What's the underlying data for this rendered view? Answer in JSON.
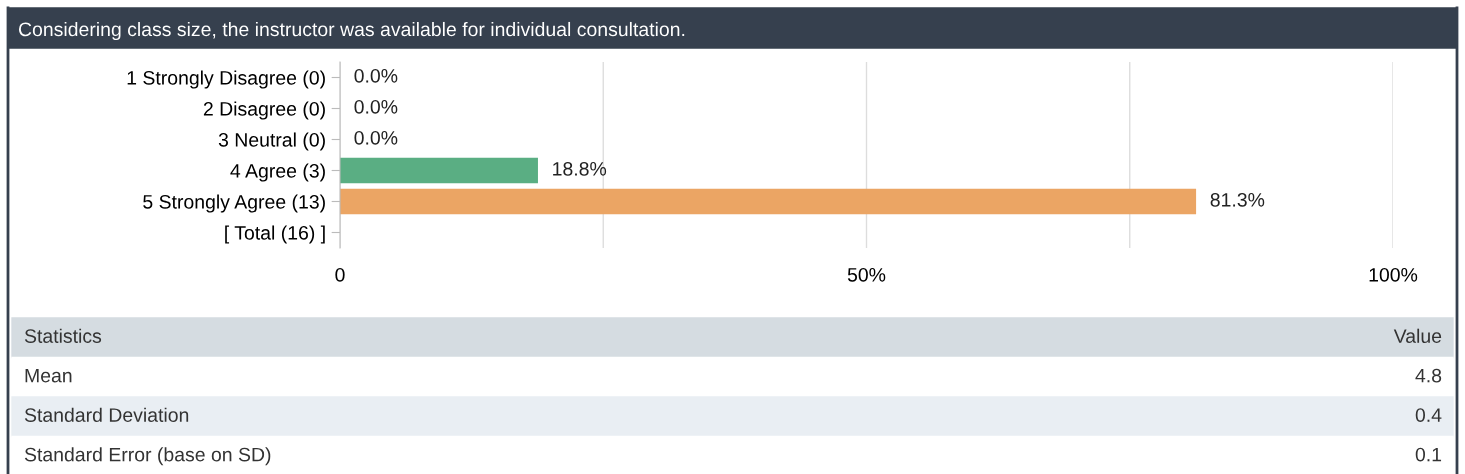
{
  "chart_data": {
    "type": "bar",
    "orientation": "horizontal",
    "title": "Considering class size, the instructor was available for individual consultation.",
    "categories": [
      "1 Strongly Disagree (0)",
      "2 Disagree (0)",
      "3 Neutral (0)",
      "4 Agree (3)",
      "5 Strongly Agree (13)",
      "[ Total (16) ]"
    ],
    "values": [
      0,
      0,
      0,
      18.8,
      81.3,
      null
    ],
    "colors": [
      "#5aae83",
      "#5aae83",
      "#5aae83",
      "#5aae83",
      "#eba564",
      "#5aae83"
    ],
    "value_labels": [
      "0.0%",
      "0.0%",
      "0.0%",
      "18.8%",
      "81.3%",
      null
    ],
    "xlim": [
      0,
      100
    ],
    "xticks": [
      0,
      {
        "value": 25,
        "label": null
      },
      {
        "value": 50,
        "label": "50%"
      },
      {
        "value": 75,
        "label": null
      },
      {
        "value": 100,
        "label": "100%"
      }
    ],
    "grid": "x",
    "legend": false,
    "annotations": [
      "Statistics",
      "Value",
      "Mean",
      "4.8",
      "Standard Deviation",
      "0.4",
      "Standard Error (base on SD)",
      "0.1"
    ]
  }
}
